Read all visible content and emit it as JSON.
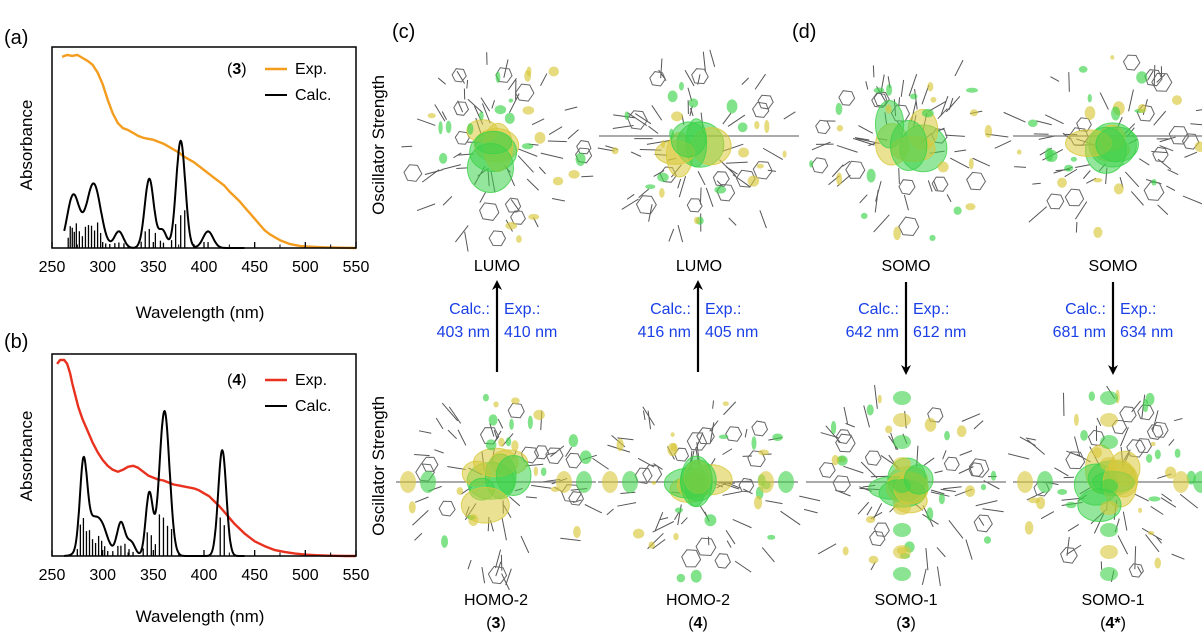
{
  "colors": {
    "exp_3": "#f39c1e",
    "exp_4": "#e8311e",
    "calc": "#000000",
    "energy_text": "#1a3fe6",
    "orbital_green": "#3cd24a",
    "orbital_yellow": "#d8c83a",
    "molecule_stroke": "#555555"
  },
  "panel_labels": {
    "a": "(a)",
    "b": "(b)",
    "c": "(c)",
    "d": "(d)"
  },
  "chart_data": [
    {
      "type": "line",
      "panel": "(a)",
      "xlabel": "Wavelength (nm)",
      "ylabel": "Absorbance",
      "ylabel_right": "Oscillator Strength",
      "xlim": [
        250,
        550
      ],
      "ylim": [
        0,
        1
      ],
      "xticks": [
        250,
        300,
        350,
        400,
        450,
        500,
        550
      ],
      "legend_compound": "3",
      "series": [
        {
          "name": "Exp.",
          "color": "#f39c1e",
          "x": [
            260,
            265,
            270,
            275,
            280,
            285,
            290,
            295,
            300,
            305,
            310,
            315,
            320,
            325,
            330,
            335,
            340,
            345,
            350,
            355,
            360,
            365,
            370,
            375,
            380,
            385,
            390,
            395,
            400,
            405,
            410,
            415,
            420,
            425,
            430,
            435,
            440,
            445,
            450,
            455,
            460,
            465,
            470,
            475,
            480,
            485,
            490,
            495,
            500,
            510,
            520,
            530,
            540,
            550
          ],
          "y": [
            0.98,
            0.99,
            0.985,
            0.99,
            0.975,
            0.96,
            0.94,
            0.9,
            0.84,
            0.76,
            0.69,
            0.64,
            0.615,
            0.605,
            0.59,
            0.575,
            0.565,
            0.56,
            0.555,
            0.545,
            0.535,
            0.52,
            0.505,
            0.49,
            0.47,
            0.455,
            0.44,
            0.42,
            0.4,
            0.38,
            0.36,
            0.34,
            0.32,
            0.29,
            0.265,
            0.24,
            0.21,
            0.18,
            0.15,
            0.12,
            0.09,
            0.07,
            0.055,
            0.04,
            0.03,
            0.02,
            0.015,
            0.01,
            0.008,
            0.005,
            0.003,
            0.002,
            0.001,
            0.0
          ]
        },
        {
          "name": "Calc.",
          "color": "#000000",
          "peaks": [
            [
              271,
              0.27,
              6
            ],
            [
              291,
              0.33,
              7
            ],
            [
              316,
              0.085,
              4.5
            ],
            [
              346,
              0.355,
              4.5
            ],
            [
              359,
              0.09,
              4
            ],
            [
              377,
              0.55,
              4.5
            ],
            [
              404,
              0.085,
              5
            ]
          ]
        }
      ],
      "sticks_x": [
        266,
        268,
        270,
        272,
        274,
        277,
        280,
        283,
        286,
        289,
        292,
        295,
        298,
        303,
        307,
        312,
        316,
        321,
        338,
        342,
        346,
        352,
        357,
        360,
        368,
        372,
        377,
        381,
        390,
        404
      ]
    },
    {
      "type": "line",
      "panel": "(b)",
      "xlabel": "Wavelength (nm)",
      "ylabel": "Absorbance",
      "ylabel_right": "Oscillator Strength",
      "xlim": [
        250,
        550
      ],
      "ylim": [
        0,
        1
      ],
      "xticks": [
        250,
        300,
        350,
        400,
        450,
        500,
        550
      ],
      "legend_compound": "4",
      "series": [
        {
          "name": "Exp.",
          "color": "#e8311e",
          "x": [
            255,
            258,
            262,
            265,
            268,
            270,
            273,
            276,
            280,
            285,
            290,
            295,
            300,
            305,
            310,
            315,
            320,
            325,
            330,
            335,
            340,
            345,
            350,
            355,
            360,
            365,
            370,
            375,
            380,
            385,
            390,
            395,
            400,
            405,
            410,
            415,
            420,
            425,
            430,
            435,
            440,
            445,
            450,
            460,
            470,
            480,
            490,
            500,
            510,
            520,
            530,
            540,
            550
          ],
          "y": [
            0.98,
            1.0,
            1.0,
            0.98,
            0.93,
            0.88,
            0.82,
            0.76,
            0.7,
            0.64,
            0.58,
            0.53,
            0.49,
            0.46,
            0.44,
            0.43,
            0.44,
            0.455,
            0.46,
            0.45,
            0.43,
            0.41,
            0.4,
            0.39,
            0.385,
            0.375,
            0.365,
            0.36,
            0.355,
            0.35,
            0.345,
            0.335,
            0.32,
            0.305,
            0.28,
            0.255,
            0.225,
            0.195,
            0.165,
            0.14,
            0.115,
            0.095,
            0.075,
            0.05,
            0.03,
            0.02,
            0.012,
            0.007,
            0.004,
            0.002,
            0.001,
            0.0,
            0.0
          ]
        },
        {
          "name": "Calc.",
          "color": "#000000",
          "peaks": [
            [
              281,
              0.4,
              3.5
            ],
            [
              289,
              0.17,
              8
            ],
            [
              300,
              0.1,
              6
            ],
            [
              318,
              0.17,
              4
            ],
            [
              328,
              0.07,
              4
            ],
            [
              346,
              0.32,
              3.5
            ],
            [
              361,
              0.74,
              5
            ],
            [
              418,
              0.54,
              4
            ]
          ]
        }
      ],
      "sticks_x": [
        275,
        278,
        281,
        284,
        287,
        290,
        293,
        296,
        299,
        302,
        305,
        310,
        315,
        318,
        322,
        326,
        330,
        340,
        344,
        348,
        352,
        356,
        360,
        364,
        368,
        416,
        420
      ]
    }
  ],
  "orbitals": {
    "top": [
      {
        "label": "LUMO"
      },
      {
        "label": "LUMO"
      },
      {
        "label": "SOMO"
      },
      {
        "label": "SOMO"
      }
    ],
    "bottom": [
      {
        "label": "HOMO-2",
        "compound": "3"
      },
      {
        "label": "HOMO-2",
        "compound": "4"
      },
      {
        "label": "SOMO-1",
        "compound": "3"
      },
      {
        "label": "SOMO-1",
        "compound": "4*"
      }
    ]
  },
  "transitions": [
    {
      "calc_label": "Calc.:",
      "calc_value": "403 nm",
      "exp_label": "Exp.:",
      "exp_value": "410 nm",
      "direction": "up"
    },
    {
      "calc_label": "Calc.:",
      "calc_value": "416 nm",
      "exp_label": "Exp.:",
      "exp_value": "405 nm",
      "direction": "up"
    },
    {
      "calc_label": "Calc.:",
      "calc_value": "642 nm",
      "exp_label": "Exp.:",
      "exp_value": "612 nm",
      "direction": "down"
    },
    {
      "calc_label": "Calc.:",
      "calc_value": "681 nm",
      "exp_label": "Exp.:",
      "exp_value": "634 nm",
      "direction": "down"
    }
  ],
  "molecule_seeds": [
    11,
    23,
    37,
    53,
    71,
    89,
    107,
    131
  ]
}
